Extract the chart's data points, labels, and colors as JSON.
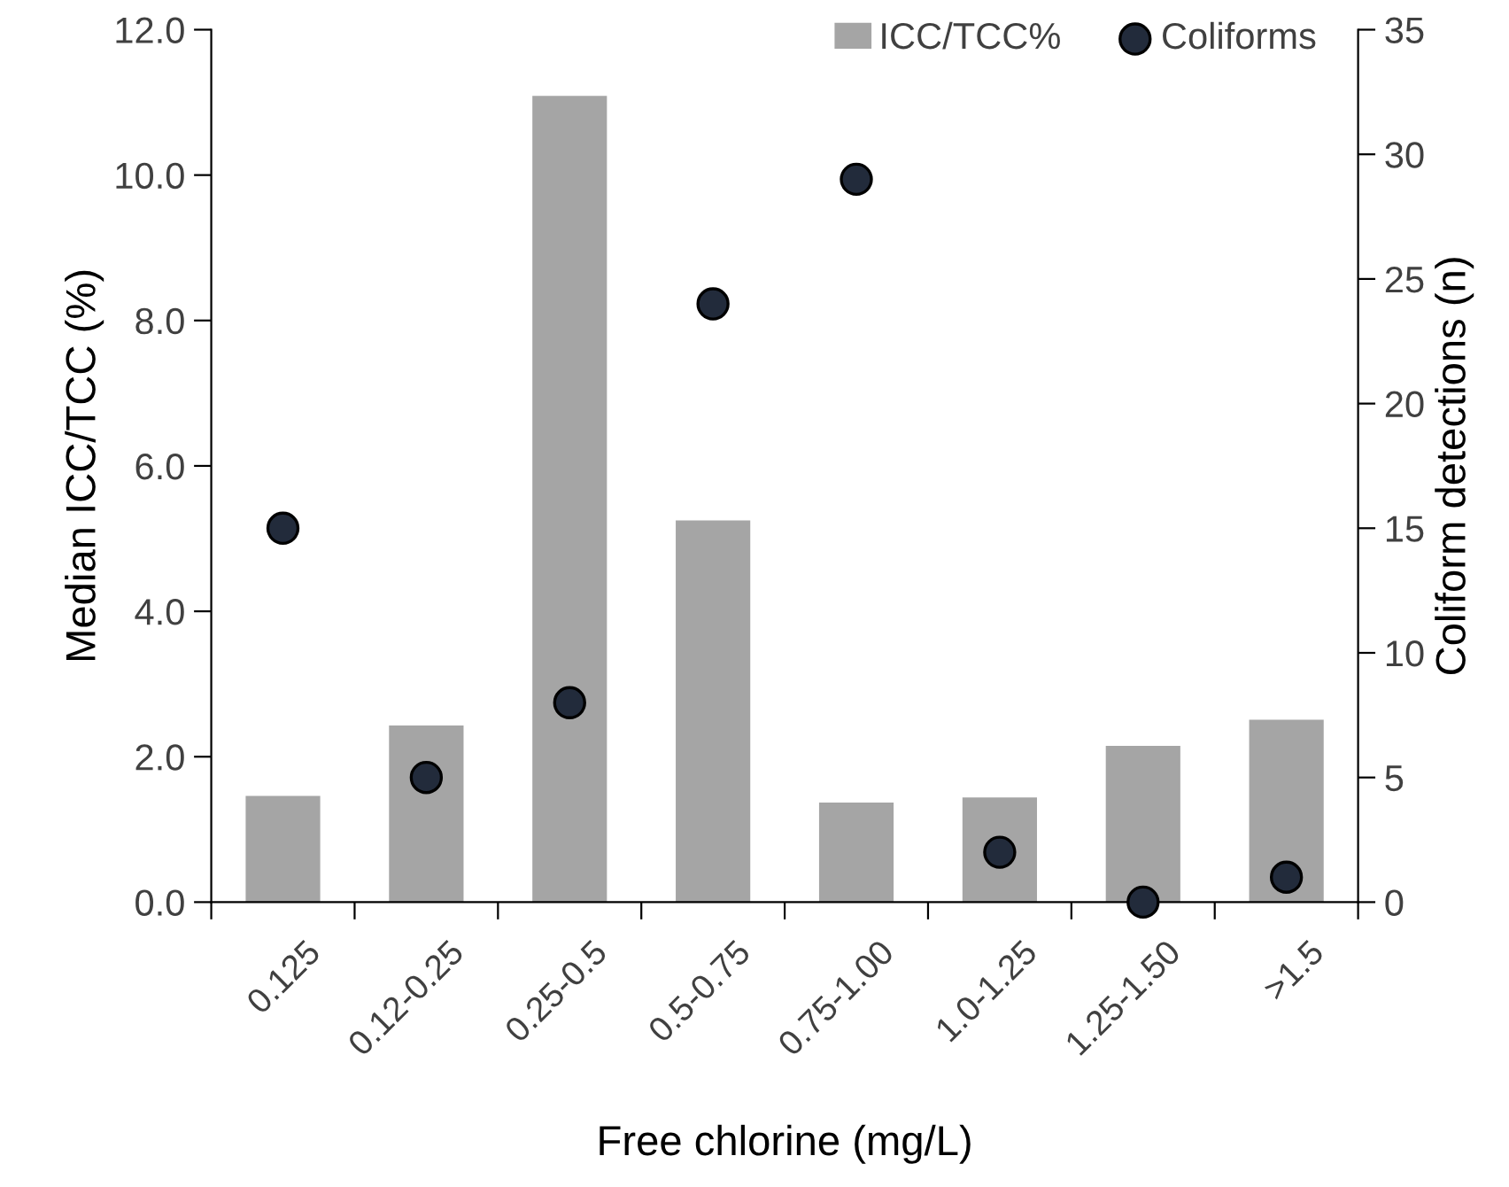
{
  "chart_data": {
    "type": "bar",
    "xlabel": "Free chlorine (mg/L)",
    "ylabel": "Median ICC/TCC (%)",
    "y2label": "Coliform detections (n)",
    "categories": [
      "0.125",
      "0.12-0.25",
      "0.25-0.5",
      "0.5-0.75",
      "0.75-1.00",
      "1.0-1.25",
      "1.25-1.50",
      ">1.5"
    ],
    "series": [
      {
        "name": "ICC/TCC%",
        "color": "#a5a5a5",
        "values": [
          1.46,
          2.43,
          11.09,
          5.25,
          1.37,
          1.44,
          2.15,
          2.51
        ]
      },
      {
        "name": "Coliforms",
        "type": "scatter",
        "axis": "y2",
        "color": "#222b3b",
        "marker": "circle",
        "values": [
          15,
          5,
          8,
          24,
          29,
          2,
          0,
          1
        ]
      }
    ],
    "ylim": [
      0,
      12
    ],
    "yticks": [
      {
        "value": 0,
        "label": "0.0"
      },
      {
        "value": 2,
        "label": "2.0"
      },
      {
        "value": 4,
        "label": "4.0"
      },
      {
        "value": 6,
        "label": "6.0"
      },
      {
        "value": 8,
        "label": "8.0"
      },
      {
        "value": 10,
        "label": "10.0"
      },
      {
        "value": 12,
        "label": "12.0"
      }
    ],
    "y2lim": [
      0,
      35
    ],
    "y2ticks": [
      0,
      5,
      10,
      15,
      20,
      25,
      30,
      35
    ],
    "grid": false,
    "legend": "top right"
  }
}
